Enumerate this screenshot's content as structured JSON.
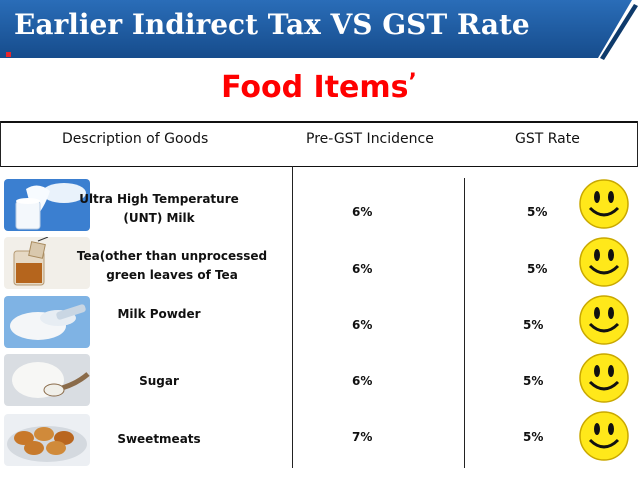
{
  "header": {
    "title": "Earlier Indirect Tax VS GST Rate"
  },
  "subtitle": {
    "text": "Food Items",
    "mark": "’"
  },
  "table": {
    "columns": [
      "Description of Goods",
      "Pre-GST Incidence",
      "GST Rate"
    ],
    "rows": [
      {
        "lines": [
          "Ultra High Temperature",
          "(UNT) Milk"
        ],
        "pre_gst": "6%",
        "gst": "5%",
        "image_icon": "milk-glass-icon"
      },
      {
        "lines": [
          "Tea(other than unprocessed",
          "green leaves of Tea"
        ],
        "pre_gst": "6%",
        "gst": "5%",
        "image_icon": "tea-cup-icon"
      },
      {
        "lines": [
          "Milk Powder"
        ],
        "pre_gst": "6%",
        "gst": "5%",
        "image_icon": "milk-powder-icon"
      },
      {
        "lines": [
          "Sugar"
        ],
        "pre_gst": "6%",
        "gst": "5%",
        "image_icon": "sugar-spoon-icon"
      },
      {
        "lines": [
          "Sweetmeats"
        ],
        "pre_gst": "7%",
        "gst": "5%",
        "image_icon": "sweetmeats-icon"
      }
    ]
  },
  "colors": {
    "banner": "#1f5fa8",
    "banner_dark": "#13437a",
    "subtitle": "#ff0000",
    "smiley": "#ffe81a"
  }
}
